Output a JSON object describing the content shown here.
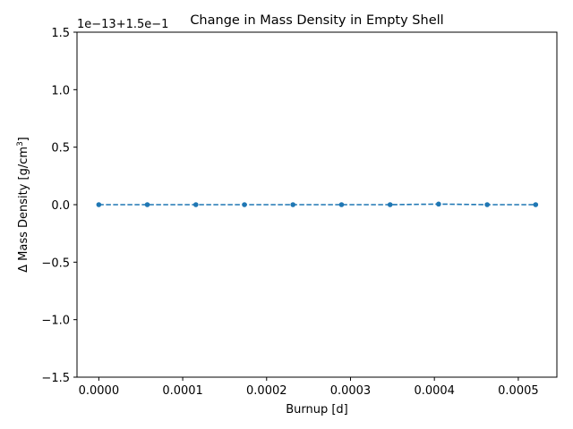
{
  "chart_data": {
    "type": "line",
    "title": "Change in Mass Density in Empty Shell",
    "xlabel": "Burnup [d]",
    "ylabel_prefix": "Δ Mass Density [g/cm",
    "ylabel_sup": "3",
    "ylabel_suffix": "]",
    "offset_text": "1e−13+1.5e−1",
    "xlim": [
      -2.6e-05,
      0.000546
    ],
    "ylim": [
      -1.5,
      1.5
    ],
    "x_ticks": [
      0.0,
      0.0001,
      0.0002,
      0.0003,
      0.0004,
      0.0005
    ],
    "x_tick_labels": [
      "0.0000",
      "0.0001",
      "0.0002",
      "0.0003",
      "0.0004",
      "0.0005"
    ],
    "y_ticks": [
      -1.5,
      -1.0,
      -0.5,
      0.0,
      0.5,
      1.0,
      1.5
    ],
    "y_tick_labels": [
      "−1.5",
      "−1.0",
      "−0.5",
      "0.0",
      "0.5",
      "1.0",
      "1.5"
    ],
    "grid": false,
    "series": [
      {
        "color": "#1f77b4",
        "linestyle": "dashed",
        "marker": "circle",
        "x": [
          0.0,
          5.78e-05,
          0.0001157,
          0.0001736,
          0.0002314,
          0.0002893,
          0.0003472,
          0.000405,
          0.0004629,
          0.0005207
        ],
        "y": [
          0.0,
          0.0,
          0.0,
          0.0,
          0.0,
          0.0,
          0.0,
          0.005,
          0.0,
          0.0
        ]
      }
    ]
  }
}
